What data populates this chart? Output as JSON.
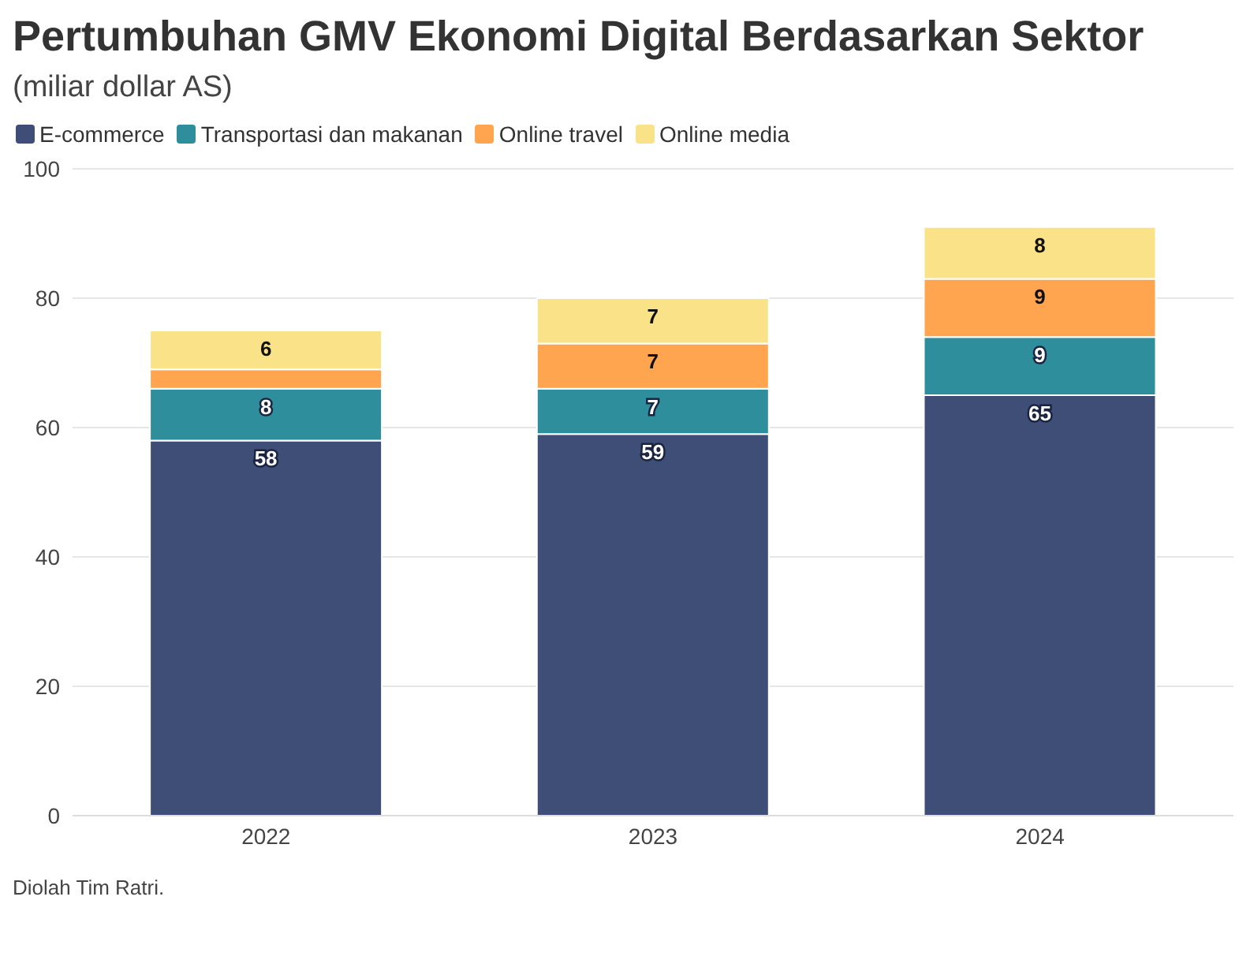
{
  "chart_data": {
    "type": "bar",
    "title": "Pertumbuhan GMV Ekonomi Digital Berdasarkan Sektor",
    "subtitle": "(miliar dollar AS)",
    "categories": [
      "2022",
      "2023",
      "2024"
    ],
    "stacked": true,
    "series": [
      {
        "name": "E-commerce",
        "color": "#3f4e77",
        "values": [
          58,
          59,
          65
        ],
        "value_labels": [
          "58",
          "59",
          "65"
        ]
      },
      {
        "name": "Transportasi dan makanan",
        "color": "#2e8e9b",
        "values": [
          8,
          7,
          9
        ],
        "value_labels": [
          "8",
          "7",
          "9"
        ]
      },
      {
        "name": "Online travel",
        "color": "#ffa550",
        "values": [
          3,
          7,
          9
        ],
        "value_labels": [
          null,
          "7",
          "9"
        ]
      },
      {
        "name": "Online media",
        "color": "#fae288",
        "values": [
          6,
          7,
          8
        ],
        "value_labels": [
          "6",
          "7",
          "8"
        ]
      }
    ],
    "ylim": [
      0,
      100
    ],
    "yticks": [
      0,
      20,
      40,
      60,
      80,
      100
    ],
    "grid": "y",
    "legend": "top left",
    "annotations": [
      "Diolah Tim Ratri."
    ]
  }
}
